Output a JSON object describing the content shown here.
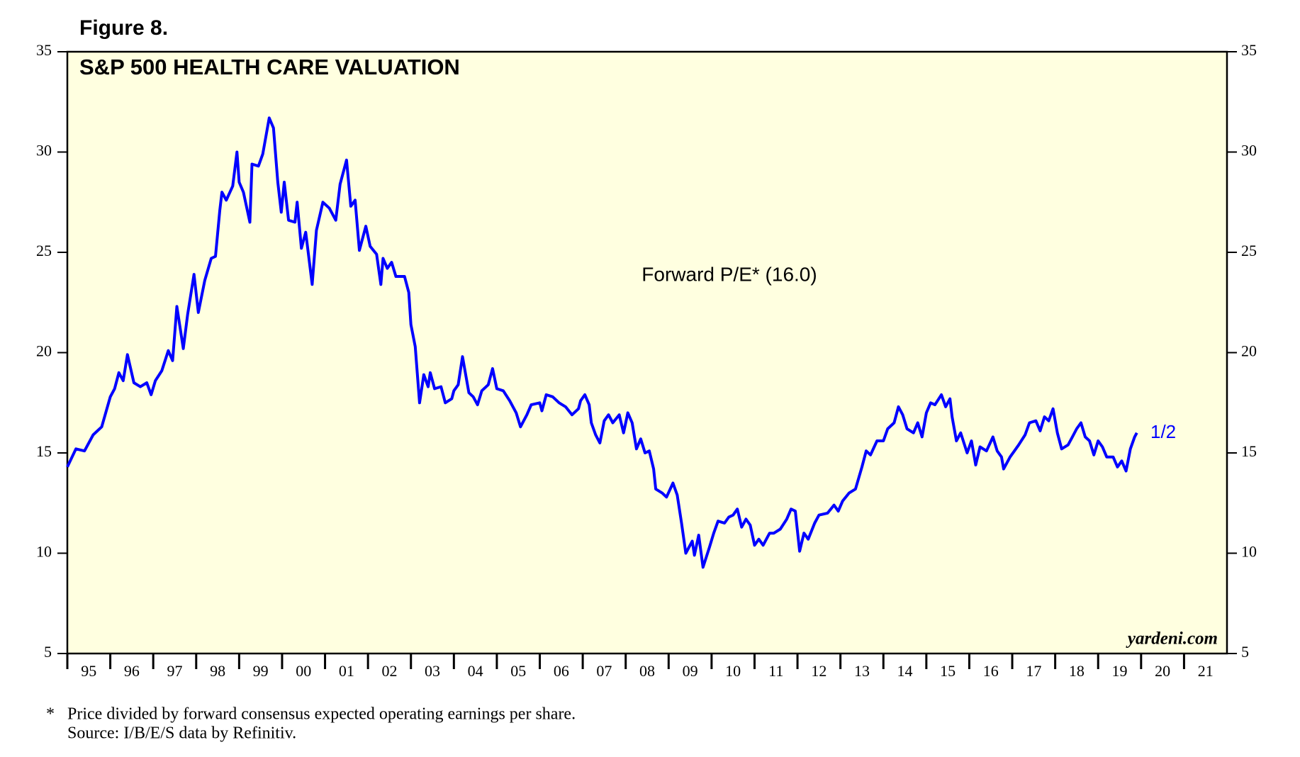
{
  "chart_data": {
    "type": "line",
    "figure_label": "Figure 8.",
    "title": "S&P 500 HEALTH CARE VALUATION",
    "annotation": "Forward P/E* (16.0)",
    "end_label": "1/2",
    "source_mark": "yardeni.com",
    "footnote": "Price divided by forward consensus expected operating earnings per share.",
    "footnote_marker": "*",
    "source": "Source: I/B/E/S data by Refinitiv.",
    "xlim": [
      1995,
      2022
    ],
    "xticks": [
      {
        "value": 1995,
        "label": "95"
      },
      {
        "value": 1996,
        "label": "96"
      },
      {
        "value": 1997,
        "label": "97"
      },
      {
        "value": 1998,
        "label": "98"
      },
      {
        "value": 1999,
        "label": "99"
      },
      {
        "value": 2000,
        "label": "00"
      },
      {
        "value": 2001,
        "label": "01"
      },
      {
        "value": 2002,
        "label": "02"
      },
      {
        "value": 2003,
        "label": "03"
      },
      {
        "value": 2004,
        "label": "04"
      },
      {
        "value": 2005,
        "label": "05"
      },
      {
        "value": 2006,
        "label": "06"
      },
      {
        "value": 2007,
        "label": "07"
      },
      {
        "value": 2008,
        "label": "08"
      },
      {
        "value": 2009,
        "label": "09"
      },
      {
        "value": 2010,
        "label": "10"
      },
      {
        "value": 2011,
        "label": "11"
      },
      {
        "value": 2012,
        "label": "12"
      },
      {
        "value": 2013,
        "label": "13"
      },
      {
        "value": 2014,
        "label": "14"
      },
      {
        "value": 2015,
        "label": "15"
      },
      {
        "value": 2016,
        "label": "16"
      },
      {
        "value": 2017,
        "label": "17"
      },
      {
        "value": 2018,
        "label": "18"
      },
      {
        "value": 2019,
        "label": "19"
      },
      {
        "value": 2020,
        "label": "20"
      },
      {
        "value": 2021,
        "label": "21"
      }
    ],
    "ylim": [
      5,
      35
    ],
    "yticks": [
      5,
      10,
      15,
      20,
      25,
      30,
      35
    ],
    "y2lim": [
      5,
      35
    ],
    "y2ticks": [
      5,
      10,
      15,
      20,
      25,
      30,
      35
    ],
    "series": [
      {
        "color": "#0000ff",
        "x": [
          1995.0,
          1995.2,
          1995.4,
          1995.6,
          1995.8,
          1996.0,
          1996.1,
          1996.2,
          1996.3,
          1996.4,
          1996.55,
          1996.7,
          1996.85,
          1996.95,
          1997.05,
          1997.2,
          1997.35,
          1997.45,
          1997.55,
          1997.7,
          1997.8,
          1997.95,
          1998.05,
          1998.2,
          1998.35,
          1998.45,
          1998.55,
          1998.6,
          1998.7,
          1998.85,
          1998.95,
          1999.0,
          1999.1,
          1999.25,
          1999.3,
          1999.45,
          1999.55,
          1999.7,
          1999.8,
          1999.9,
          1999.98,
          2000.05,
          2000.15,
          2000.3,
          2000.35,
          2000.45,
          2000.55,
          2000.7,
          2000.8,
          2000.95,
          2001.1,
          2001.25,
          2001.35,
          2001.5,
          2001.6,
          2001.7,
          2001.8,
          2001.95,
          2002.05,
          2002.2,
          2002.3,
          2002.35,
          2002.45,
          2002.55,
          2002.65,
          2002.85,
          2002.95,
          2003.0,
          2003.1,
          2003.2,
          2003.3,
          2003.4,
          2003.45,
          2003.55,
          2003.7,
          2003.8,
          2003.95,
          2004.0,
          2004.1,
          2004.2,
          2004.35,
          2004.45,
          2004.55,
          2004.65,
          2004.8,
          2004.9,
          2005.0,
          2005.15,
          2005.3,
          2005.45,
          2005.55,
          2005.7,
          2005.8,
          2006.0,
          2006.05,
          2006.15,
          2006.3,
          2006.45,
          2006.6,
          2006.75,
          2006.9,
          2006.95,
          2007.05,
          2007.15,
          2007.2,
          2007.3,
          2007.4,
          2007.5,
          2007.6,
          2007.7,
          2007.85,
          2007.95,
          2008.05,
          2008.15,
          2008.25,
          2008.35,
          2008.45,
          2008.55,
          2008.65,
          2008.7,
          2008.85,
          2008.95,
          2009.1,
          2009.2,
          2009.3,
          2009.4,
          2009.55,
          2009.6,
          2009.7,
          2009.8,
          2009.95,
          2010.05,
          2010.15,
          2010.3,
          2010.4,
          2010.5,
          2010.6,
          2010.7,
          2010.8,
          2010.9,
          2011.0,
          2011.1,
          2011.2,
          2011.35,
          2011.45,
          2011.6,
          2011.75,
          2011.85,
          2011.95,
          2012.05,
          2012.15,
          2012.25,
          2012.4,
          2012.5,
          2012.7,
          2012.85,
          2012.95,
          2013.05,
          2013.2,
          2013.35,
          2013.5,
          2013.6,
          2013.7,
          2013.85,
          2014.0,
          2014.1,
          2014.25,
          2014.35,
          2014.45,
          2014.55,
          2014.7,
          2014.8,
          2014.9,
          2015.0,
          2015.1,
          2015.2,
          2015.35,
          2015.45,
          2015.55,
          2015.6,
          2015.7,
          2015.8,
          2015.95,
          2016.05,
          2016.15,
          2016.25,
          2016.4,
          2016.55,
          2016.65,
          2016.75,
          2016.8,
          2016.95,
          2017.05,
          2017.15,
          2017.3,
          2017.4,
          2017.55,
          2017.65,
          2017.75,
          2017.85,
          2017.95,
          2018.05,
          2018.15,
          2018.3,
          2018.4,
          2018.5,
          2018.6,
          2018.7,
          2018.8,
          2018.9,
          2019.0,
          2019.1,
          2019.2,
          2019.35,
          2019.45,
          2019.55,
          2019.65,
          2019.75,
          2019.85,
          2019.9
        ],
        "values": [
          14.3,
          15.2,
          15.1,
          15.9,
          16.3,
          17.8,
          18.2,
          19.0,
          18.6,
          19.9,
          18.5,
          18.3,
          18.5,
          17.9,
          18.6,
          19.1,
          20.1,
          19.6,
          22.3,
          20.2,
          21.9,
          23.9,
          22.0,
          23.6,
          24.7,
          24.8,
          27.1,
          28.0,
          27.6,
          28.3,
          30.0,
          28.5,
          28.0,
          26.5,
          29.4,
          29.3,
          29.9,
          31.7,
          31.2,
          28.5,
          27.0,
          28.5,
          26.6,
          26.5,
          27.5,
          25.2,
          26.0,
          23.4,
          26.1,
          27.5,
          27.2,
          26.6,
          28.4,
          29.6,
          27.3,
          27.6,
          25.1,
          26.3,
          25.3,
          24.9,
          23.4,
          24.7,
          24.2,
          24.5,
          23.8,
          23.8,
          23.0,
          21.4,
          20.3,
          17.5,
          18.9,
          18.3,
          19.0,
          18.2,
          18.3,
          17.5,
          17.7,
          18.1,
          18.4,
          19.8,
          18.0,
          17.8,
          17.4,
          18.1,
          18.4,
          19.2,
          18.2,
          18.1,
          17.6,
          17.0,
          16.3,
          16.9,
          17.4,
          17.5,
          17.1,
          17.9,
          17.8,
          17.5,
          17.3,
          16.9,
          17.2,
          17.6,
          17.9,
          17.4,
          16.5,
          15.9,
          15.5,
          16.6,
          16.9,
          16.5,
          16.9,
          16.0,
          17.0,
          16.5,
          15.2,
          15.7,
          15.0,
          15.1,
          14.2,
          13.2,
          13.0,
          12.8,
          13.5,
          12.9,
          11.5,
          10.0,
          10.6,
          9.9,
          10.9,
          9.3,
          10.3,
          11.0,
          11.6,
          11.5,
          11.8,
          11.9,
          12.2,
          11.3,
          11.7,
          11.4,
          10.4,
          10.7,
          10.4,
          11.0,
          11.0,
          11.2,
          11.7,
          12.2,
          12.1,
          10.1,
          11.0,
          10.7,
          11.5,
          11.9,
          12.0,
          12.4,
          12.1,
          12.6,
          13.0,
          13.2,
          14.3,
          15.1,
          14.9,
          15.6,
          15.6,
          16.2,
          16.5,
          17.3,
          16.9,
          16.2,
          16.0,
          16.5,
          15.8,
          17.0,
          17.5,
          17.4,
          17.9,
          17.3,
          17.7,
          16.8,
          15.6,
          16.0,
          15.0,
          15.6,
          14.4,
          15.3,
          15.1,
          15.8,
          15.1,
          14.8,
          14.2,
          14.8,
          15.1,
          15.4,
          15.9,
          16.5,
          16.6,
          16.1,
          16.8,
          16.6,
          17.2,
          16.0,
          15.2,
          15.4,
          15.8,
          16.2,
          16.5,
          15.8,
          15.6,
          14.9,
          15.6,
          15.3,
          14.8,
          14.8,
          14.3,
          14.6,
          14.1,
          15.2,
          15.8,
          16.0
        ]
      }
    ]
  }
}
